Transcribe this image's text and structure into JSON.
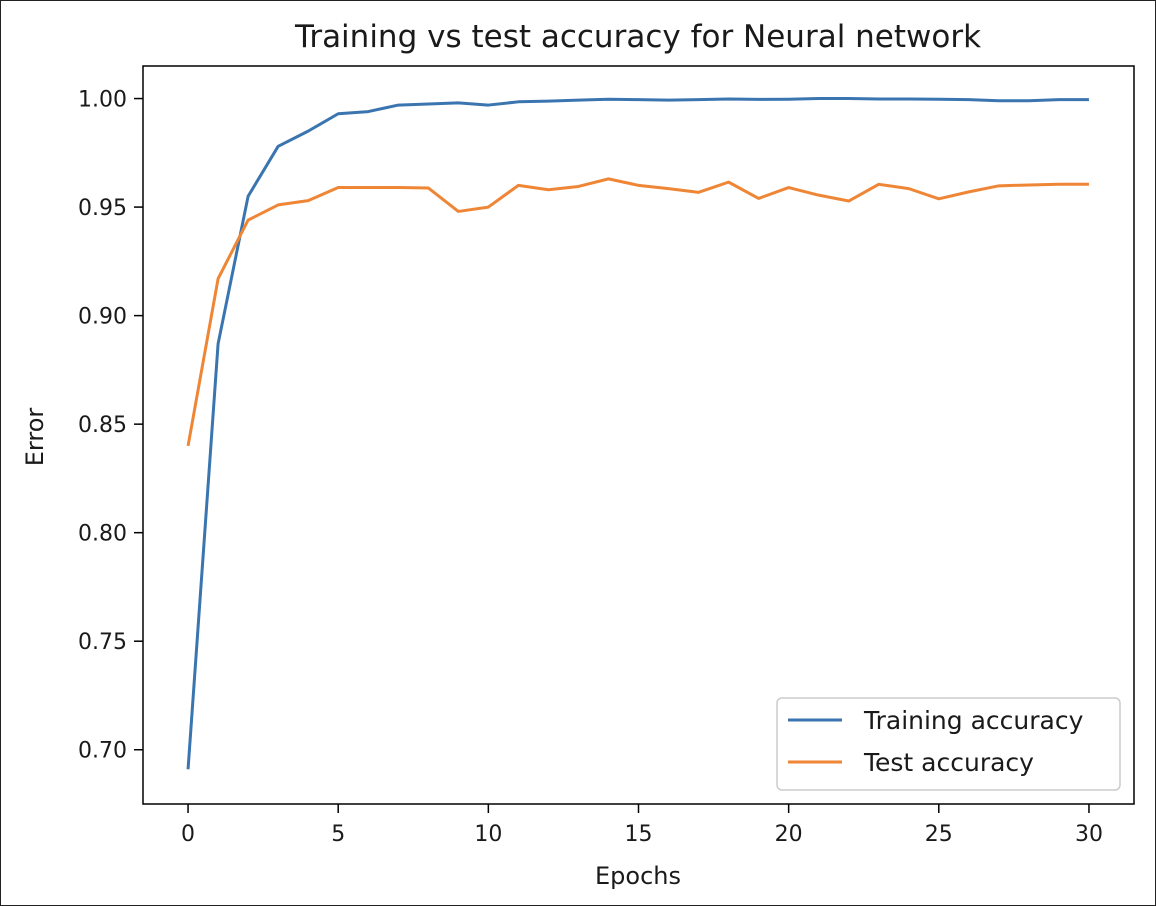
{
  "chart_data": {
    "type": "line",
    "title": "Training vs test accuracy for Neural network",
    "xlabel": "Epochs",
    "ylabel": "Error",
    "xlim": [
      -1.5,
      31.5
    ],
    "ylim": [
      0.675,
      1.015
    ],
    "xticks": [
      0,
      5,
      10,
      15,
      20,
      25,
      30
    ],
    "xtick_labels": [
      "0",
      "5",
      "10",
      "15",
      "20",
      "25",
      "30"
    ],
    "yticks": [
      0.7,
      0.75,
      0.8,
      0.85,
      0.9,
      0.95,
      1.0
    ],
    "ytick_labels": [
      "0.70",
      "0.75",
      "0.80",
      "0.85",
      "0.90",
      "0.95",
      "1.00"
    ],
    "grid": false,
    "legend_position": "lower-right",
    "x": [
      0,
      1,
      2,
      3,
      4,
      5,
      6,
      7,
      8,
      9,
      10,
      11,
      12,
      13,
      14,
      15,
      16,
      17,
      18,
      19,
      20,
      21,
      22,
      23,
      24,
      25,
      26,
      27,
      28,
      29,
      30
    ],
    "series": [
      {
        "name": "Training accuracy",
        "color": "#3a75b0",
        "values": [
          0.691,
          0.887,
          0.955,
          0.978,
          0.985,
          0.993,
          0.994,
          0.997,
          0.9975,
          0.998,
          0.997,
          0.9985,
          0.9988,
          0.9993,
          0.9997,
          0.9995,
          0.9993,
          0.9995,
          0.9998,
          0.9996,
          0.9997,
          1.0,
          1.0,
          0.9998,
          0.9998,
          0.9997,
          0.9995,
          0.999,
          0.999,
          0.9995,
          0.9995
        ]
      },
      {
        "name": "Test accuracy",
        "color": "#ef8636",
        "values": [
          0.84,
          0.917,
          0.944,
          0.951,
          0.953,
          0.959,
          0.959,
          0.959,
          0.9588,
          0.948,
          0.95,
          0.96,
          0.958,
          0.9595,
          0.963,
          0.96,
          0.9585,
          0.9568,
          0.9615,
          0.954,
          0.959,
          0.9555,
          0.9528,
          0.9605,
          0.9585,
          0.9538,
          0.957,
          0.9598,
          0.9602,
          0.9605,
          0.9605
        ]
      }
    ]
  }
}
